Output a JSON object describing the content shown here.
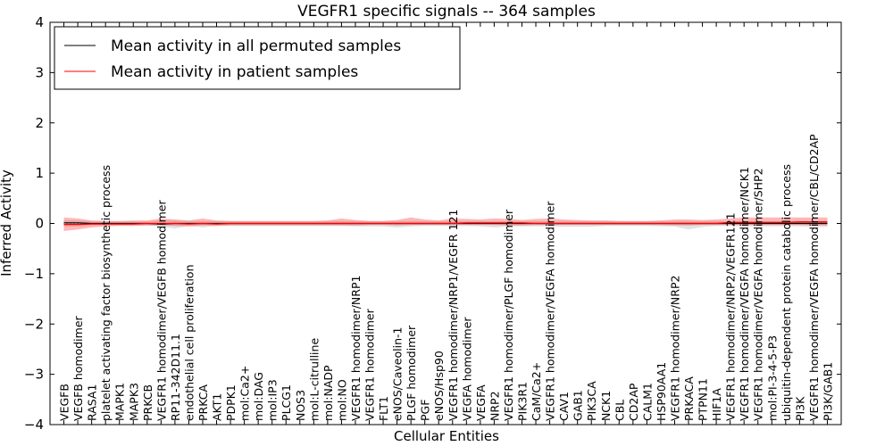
{
  "chart_data": {
    "type": "line",
    "title": "VEGFR1 specific signals -- 364 samples",
    "xlabel": "Cellular Entities",
    "ylabel": "Inferred Activity",
    "ylim": [
      -4,
      4
    ],
    "yticks": [
      "4",
      "3",
      "2",
      "1",
      "0",
      "−1",
      "−2",
      "−3",
      "−4"
    ],
    "ytick_values": [
      4,
      3,
      2,
      1,
      0,
      -1,
      -2,
      -3,
      -4
    ],
    "grid": false,
    "legend_position": "top-left",
    "categories": [
      "VEGFB",
      "VEGFB homodimer",
      "RASA1",
      "platelet activating factor biosynthetic process",
      "MAPK1",
      "MAPK3",
      "PRKCB",
      "VEGFR1 homodimer/VEGFB homodimer",
      "RP11-342D11.1",
      "endothelial cell proliferation",
      "PRKCA",
      "AKT1",
      "PDPK1",
      "mol:Ca2+",
      "mol:DAG",
      "mol:IP3",
      "PLCG1",
      "NOS3",
      "mol:L-citrulline",
      "mol:NADP",
      "mol:NO",
      "VEGFR1 homodimer/NRP1",
      "VEGFR1 homodimer",
      "FLT1",
      "eNOS/Caveolin-1",
      "PLGF homodimer",
      "PGF",
      "eNOS/Hsp90",
      "VEGFR1 homodimer/NRP1/VEGFR 121",
      "VEGFA homodimer",
      "VEGFA",
      "NRP2",
      "VEGFR1 homodimer/PLGF homodimer",
      "PIK3R1",
      "CaM/Ca2+",
      "VEGFR1 homodimer/VEGFA homodimer",
      "CAV1",
      "GAB1",
      "PIK3CA",
      "NCK1",
      "CBL",
      "CD2AP",
      "CALM1",
      "HSP90AA1",
      "VEGFR1 homodimer/NRP2",
      "PRKACA",
      "PTPN11",
      "HIF1A",
      "VEGFR1 homodimer/NRP2/VEGFR121",
      "VEGFR1 homodimer/VEGFA homodimer/NCK1",
      "VEGFR1 homodimer/VEGFA homodimer/SHP2",
      "mol:PI-3-4-5-P3",
      "ubiquitin-dependent protein catabolic process",
      "PI3K",
      "VEGFR1 homodimer/VEGFA homodimer/CBL/CD2AP",
      "PI3K/GAB1"
    ],
    "series": [
      {
        "name": "Mean activity in all permuted samples",
        "color": "#000000",
        "values": [
          0.01,
          0.01,
          0.0,
          0.0,
          0.0,
          0.0,
          0.0,
          -0.01,
          0.0,
          0.0,
          0.0,
          0.0,
          0.0,
          0.0,
          0.0,
          0.0,
          0.0,
          0.0,
          0.0,
          0.0,
          0.0,
          0.0,
          0.0,
          0.0,
          0.0,
          0.0,
          0.0,
          0.0,
          0.0,
          0.0,
          0.0,
          0.0,
          0.0,
          0.0,
          0.0,
          0.0,
          0.0,
          0.0,
          0.0,
          0.0,
          0.0,
          0.0,
          0.0,
          0.0,
          0.0,
          0.0,
          0.0,
          0.0,
          0.0,
          0.0,
          0.0,
          0.0,
          0.0,
          0.0,
          0.0,
          0.0
        ],
        "lower": [
          -0.06,
          -0.06,
          -0.04,
          -0.04,
          -0.04,
          -0.04,
          -0.04,
          -0.06,
          -0.1,
          -0.05,
          -0.08,
          -0.05,
          -0.05,
          -0.05,
          -0.05,
          -0.05,
          -0.05,
          -0.05,
          -0.05,
          -0.05,
          -0.05,
          -0.06,
          -0.06,
          -0.06,
          -0.08,
          -0.06,
          -0.05,
          -0.05,
          -0.05,
          -0.05,
          -0.06,
          -0.08,
          -0.06,
          -0.06,
          -0.06,
          -0.06,
          -0.07,
          -0.07,
          -0.07,
          -0.05,
          -0.05,
          -0.05,
          -0.05,
          -0.06,
          -0.06,
          -0.12,
          -0.07,
          -0.05,
          -0.05,
          -0.06,
          -0.06,
          -0.06,
          -0.06,
          -0.06,
          -0.07,
          -0.07
        ],
        "upper": [
          0.06,
          0.06,
          0.04,
          0.04,
          0.04,
          0.04,
          0.04,
          0.06,
          0.06,
          0.05,
          0.05,
          0.05,
          0.05,
          0.05,
          0.05,
          0.05,
          0.05,
          0.05,
          0.05,
          0.05,
          0.05,
          0.05,
          0.05,
          0.05,
          0.05,
          0.05,
          0.05,
          0.05,
          0.05,
          0.05,
          0.05,
          0.05,
          0.05,
          0.05,
          0.05,
          0.05,
          0.05,
          0.05,
          0.05,
          0.05,
          0.05,
          0.05,
          0.05,
          0.05,
          0.05,
          0.05,
          0.05,
          0.05,
          0.05,
          0.05,
          0.05,
          0.05,
          0.05,
          0.05,
          0.05,
          0.05
        ]
      },
      {
        "name": "Mean activity in patient samples",
        "color": "#ff0000",
        "values": [
          -0.02,
          -0.02,
          -0.01,
          -0.01,
          -0.01,
          -0.01,
          0.0,
          0.0,
          0.0,
          -0.01,
          0.0,
          -0.01,
          0.0,
          0.0,
          0.0,
          0.0,
          0.0,
          0.0,
          0.0,
          0.0,
          0.0,
          0.0,
          0.0,
          0.0,
          0.0,
          0.0,
          0.0,
          0.0,
          0.0,
          0.01,
          0.01,
          0.01,
          0.01,
          0.01,
          0.0,
          0.0,
          0.0,
          0.0,
          0.0,
          0.0,
          0.0,
          0.0,
          0.0,
          0.0,
          0.0,
          0.0,
          0.0,
          0.0,
          0.02,
          0.02,
          0.02,
          0.02,
          0.02,
          0.03,
          0.03,
          0.03
        ],
        "lower": [
          -0.15,
          -0.12,
          -0.08,
          -0.06,
          -0.05,
          -0.05,
          -0.04,
          -0.04,
          -0.05,
          -0.06,
          -0.04,
          -0.05,
          -0.04,
          -0.04,
          -0.04,
          -0.04,
          -0.04,
          -0.04,
          -0.04,
          -0.04,
          -0.04,
          -0.04,
          -0.03,
          -0.03,
          -0.04,
          -0.03,
          -0.03,
          -0.03,
          -0.03,
          -0.03,
          -0.03,
          -0.03,
          -0.04,
          -0.04,
          -0.03,
          -0.03,
          -0.03,
          -0.03,
          -0.03,
          -0.03,
          -0.03,
          -0.03,
          -0.03,
          -0.03,
          -0.04,
          -0.04,
          -0.03,
          -0.03,
          -0.03,
          -0.03,
          -0.03,
          -0.03,
          -0.03,
          -0.03,
          -0.04,
          -0.04
        ],
        "upper": [
          0.12,
          0.1,
          0.06,
          0.05,
          0.05,
          0.06,
          0.06,
          0.1,
          0.08,
          0.06,
          0.1,
          0.06,
          0.05,
          0.05,
          0.05,
          0.05,
          0.05,
          0.05,
          0.05,
          0.06,
          0.1,
          0.07,
          0.05,
          0.05,
          0.07,
          0.12,
          0.08,
          0.06,
          0.1,
          0.09,
          0.08,
          0.1,
          0.09,
          0.07,
          0.09,
          0.1,
          0.08,
          0.07,
          0.06,
          0.06,
          0.05,
          0.05,
          0.05,
          0.06,
          0.08,
          0.08,
          0.07,
          0.08,
          0.1,
          0.12,
          0.12,
          0.12,
          0.12,
          0.12,
          0.12,
          0.12
        ]
      }
    ]
  }
}
